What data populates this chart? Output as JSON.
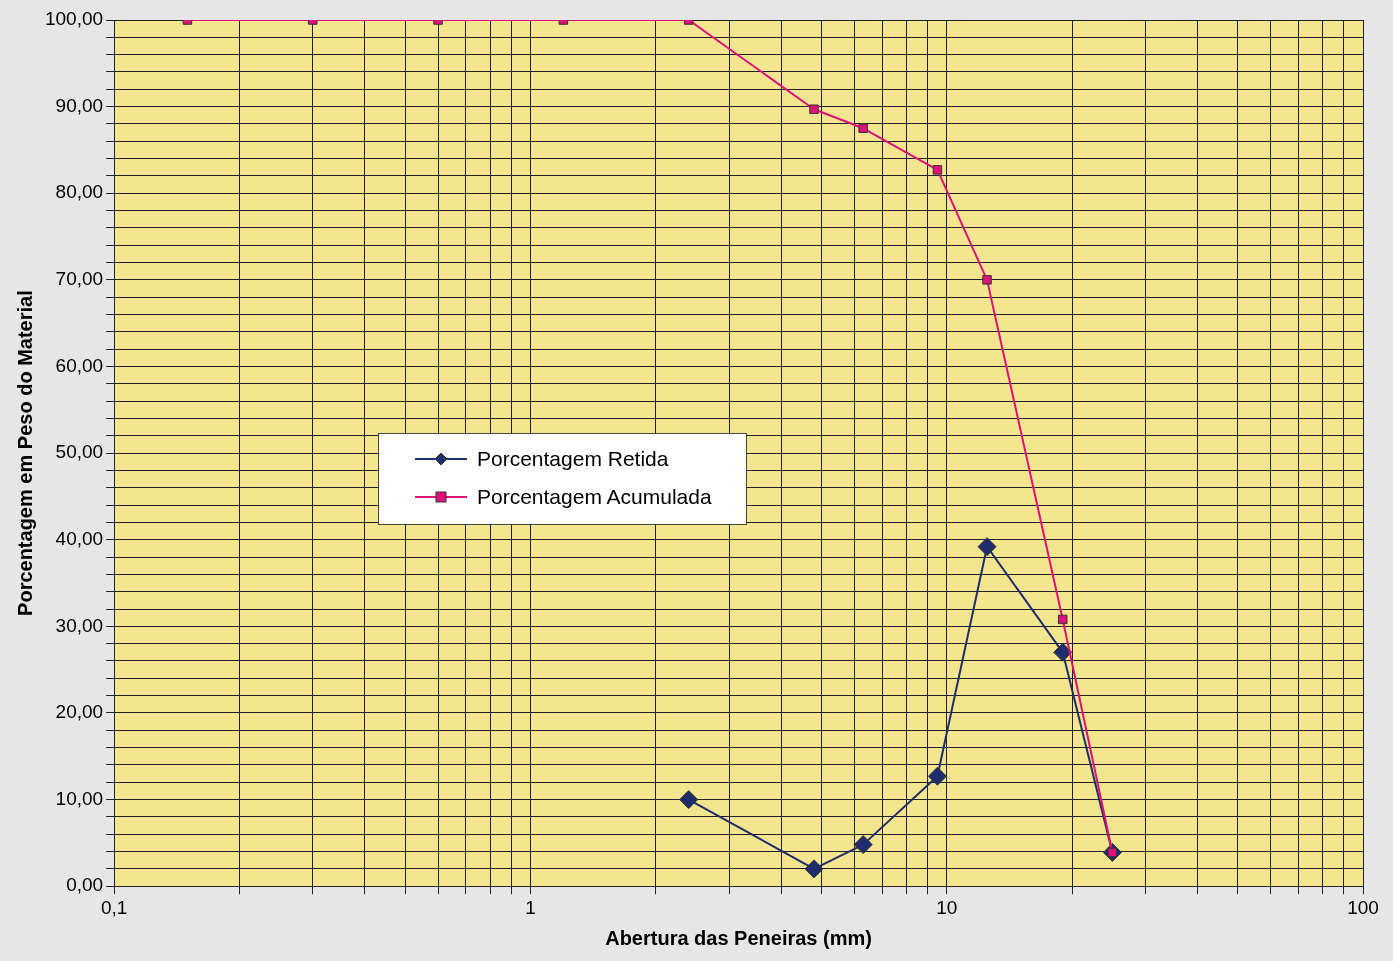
{
  "chart_data": {
    "type": "line",
    "xlabel": "Abertura das Peneiras (mm)",
    "ylabel": "Porcentagem em Peso do Material",
    "log": "x",
    "grid": true,
    "legend": "left",
    "xlim": [
      0.1,
      100
    ],
    "xticks": [
      {
        "value": 0.1,
        "label": "0,1"
      },
      {
        "value": 0.2,
        "label": null
      },
      {
        "value": 0.3,
        "label": null
      },
      {
        "value": 0.4,
        "label": null
      },
      {
        "value": 0.5,
        "label": null
      },
      {
        "value": 0.6,
        "label": null
      },
      {
        "value": 0.7,
        "label": null
      },
      {
        "value": 0.8,
        "label": null
      },
      {
        "value": 0.9,
        "label": null
      },
      1,
      {
        "value": 2,
        "label": null
      },
      {
        "value": 3,
        "label": null
      },
      {
        "value": 4,
        "label": null
      },
      {
        "value": 5,
        "label": null
      },
      {
        "value": 6,
        "label": null
      },
      {
        "value": 7,
        "label": null
      },
      {
        "value": 8,
        "label": null
      },
      {
        "value": 9,
        "label": null
      },
      10,
      {
        "value": 20,
        "label": null
      },
      {
        "value": 30,
        "label": null
      },
      {
        "value": 40,
        "label": null
      },
      {
        "value": 50,
        "label": null
      },
      {
        "value": 60,
        "label": null
      },
      {
        "value": 70,
        "label": null
      },
      {
        "value": 80,
        "label": null
      },
      {
        "value": 90,
        "label": null
      },
      100
    ],
    "ylim": [
      0,
      100
    ],
    "yticks": [
      {
        "value": 0,
        "label": "0,00"
      },
      {
        "value": 2,
        "label": null
      },
      {
        "value": 4,
        "label": null
      },
      {
        "value": 6,
        "label": null
      },
      {
        "value": 8,
        "label": null
      },
      {
        "value": 10,
        "label": "10,00"
      },
      {
        "value": 12,
        "label": null
      },
      {
        "value": 14,
        "label": null
      },
      {
        "value": 16,
        "label": null
      },
      {
        "value": 18,
        "label": null
      },
      {
        "value": 20,
        "label": "20,00"
      },
      {
        "value": 22,
        "label": null
      },
      {
        "value": 24,
        "label": null
      },
      {
        "value": 26,
        "label": null
      },
      {
        "value": 28,
        "label": null
      },
      {
        "value": 30,
        "label": "30,00"
      },
      {
        "value": 32,
        "label": null
      },
      {
        "value": 34,
        "label": null
      },
      {
        "value": 36,
        "label": null
      },
      {
        "value": 38,
        "label": null
      },
      {
        "value": 40,
        "label": "40,00"
      },
      {
        "value": 42,
        "label": null
      },
      {
        "value": 44,
        "label": null
      },
      {
        "value": 46,
        "label": null
      },
      {
        "value": 48,
        "label": null
      },
      {
        "value": 50,
        "label": "50,00"
      },
      {
        "value": 52,
        "label": null
      },
      {
        "value": 54,
        "label": null
      },
      {
        "value": 56,
        "label": null
      },
      {
        "value": 58,
        "label": null
      },
      {
        "value": 60,
        "label": "60,00"
      },
      {
        "value": 62,
        "label": null
      },
      {
        "value": 64,
        "label": null
      },
      {
        "value": 66,
        "label": null
      },
      {
        "value": 68,
        "label": null
      },
      {
        "value": 70,
        "label": "70,00"
      },
      {
        "value": 72,
        "label": null
      },
      {
        "value": 74,
        "label": null
      },
      {
        "value": 76,
        "label": null
      },
      {
        "value": 78,
        "label": null
      },
      {
        "value": 80,
        "label": "80,00"
      },
      {
        "value": 82,
        "label": null
      },
      {
        "value": 84,
        "label": null
      },
      {
        "value": 86,
        "label": null
      },
      {
        "value": 88,
        "label": null
      },
      {
        "value": 90,
        "label": "90,00"
      },
      {
        "value": 92,
        "label": null
      },
      {
        "value": 94,
        "label": null
      },
      {
        "value": 96,
        "label": null
      },
      {
        "value": 98,
        "label": null
      },
      {
        "value": 100,
        "label": "100,00"
      }
    ],
    "series": [
      {
        "name": "Porcentagem Retida",
        "color": "#1f2d6b",
        "marker": "diamond",
        "x": [
          2.4,
          4.8,
          6.3,
          9.5,
          12.5,
          19,
          25
        ],
        "values": [
          10,
          2,
          4.8,
          12.7,
          39.2,
          27,
          3.9
        ]
      },
      {
        "name": "Porcentagem Acumulada",
        "color": "#e0107a",
        "marker": "square",
        "x": [
          0.15,
          0.3,
          0.6,
          1.2,
          2.4,
          4.8,
          6.3,
          9.5,
          12.5,
          19,
          25
        ],
        "values": [
          100,
          100,
          100,
          100,
          100,
          89.7,
          87.5,
          82.7,
          70,
          30.8,
          3.9
        ]
      }
    ]
  }
}
